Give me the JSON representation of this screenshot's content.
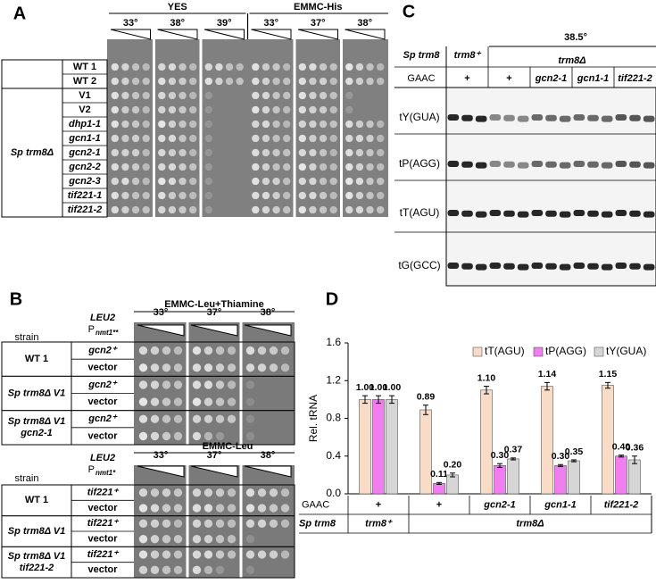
{
  "panel_a": {
    "label": "A",
    "media": [
      "YES",
      "EMMC-His"
    ],
    "temperatures": [
      "33°",
      "38°",
      "39°",
      "33°",
      "37°",
      "38°"
    ],
    "group_label": "Sp trm8Δ",
    "strains": [
      "WT 1",
      "WT 2",
      "V1",
      "V2",
      "dhp1-1",
      "gcn1-1",
      "gcn2-1",
      "gcn2-2",
      "gcn2-3",
      "tif221-1",
      "tif221-2"
    ]
  },
  "panel_b": {
    "label": "B",
    "blocks": [
      {
        "medium": "EMMC-Leu+Thiamine",
        "marker": "LEU2",
        "promoter": "P",
        "promoter_subscript": "nmt1**",
        "strain_header": "strain",
        "temperatures": [
          "33°",
          "37°",
          "38°"
        ],
        "rows": [
          {
            "strain": [
              "WT 1"
            ],
            "plasmids": [
              "gcn2⁺",
              "vector"
            ]
          },
          {
            "strain": [
              "Sp trm8Δ V1"
            ],
            "plasmids": [
              "gcn2⁺",
              "vector"
            ]
          },
          {
            "strain": [
              "Sp trm8Δ V1",
              "gcn2-1"
            ],
            "plasmids": [
              "gcn2⁺",
              "vector"
            ]
          }
        ]
      },
      {
        "medium": "EMMC-Leu",
        "marker": "LEU2",
        "promoter": "P",
        "promoter_subscript": "nmt1*",
        "strain_header": "strain",
        "temperatures": [
          "33°",
          "37°",
          "38°"
        ],
        "rows": [
          {
            "strain": [
              "WT 1"
            ],
            "plasmids": [
              "tif221⁺",
              "vector"
            ]
          },
          {
            "strain": [
              "Sp trm8Δ V1"
            ],
            "plasmids": [
              "tif221⁺",
              "vector"
            ]
          },
          {
            "strain": [
              "Sp trm8Δ V1",
              "tif221-2"
            ],
            "plasmids": [
              "tif221⁺",
              "vector"
            ]
          }
        ]
      }
    ]
  },
  "panel_c": {
    "label": "C",
    "temperature": "38.5°",
    "strain_label": "Sp trm8",
    "genotypes": [
      "trm8⁺",
      "trm8Δ"
    ],
    "gaac_label": "GAAC",
    "gaac": [
      "+",
      "+",
      "gcn2-1",
      "gcn1-1",
      "tif221-2"
    ],
    "trnas": [
      "tY(GUA)",
      "tP(AGG)",
      "tT(AGU)",
      "tG(GCC)"
    ]
  },
  "chart_data": {
    "type": "bar",
    "panel_label": "D",
    "y_label": "Rel. tRNA",
    "categories": [
      "+",
      "+",
      "gcn2-1",
      "gcn1-1",
      "tif221-2"
    ],
    "category_row_label": "GAAC",
    "group_row_label": "Sp trm8",
    "groups": [
      "trm8⁺",
      "trm8Δ"
    ],
    "series": [
      {
        "name": "tT(AGU)",
        "color": "#f9dcc8",
        "values": [
          1.0,
          0.89,
          1.1,
          1.14,
          1.15
        ],
        "value_labels": [
          "1.00",
          "0.89",
          "1.10",
          "1.14",
          "1.15"
        ],
        "errors": [
          0.04,
          0.05,
          0.04,
          0.04,
          0.03
        ]
      },
      {
        "name": "tP(AGG)",
        "color": "#f07ef0",
        "values": [
          1.0,
          0.11,
          0.3,
          0.3,
          0.4
        ],
        "value_labels": [
          "1.00",
          "0.11",
          "0.30",
          "0.30",
          "0.40"
        ],
        "errors": [
          0.04,
          0.01,
          0.02,
          0.01,
          0.01
        ]
      },
      {
        "name": "tY(GUA)",
        "color": "#d6d6d6",
        "values": [
          1.0,
          0.2,
          0.37,
          0.35,
          0.36
        ],
        "value_labels": [
          "1.00",
          "0.20",
          "0.37",
          "0.35",
          "0.36"
        ],
        "errors": [
          0.04,
          0.02,
          0.01,
          0.01,
          0.04
        ]
      }
    ],
    "ylim": [
      0,
      1.6
    ],
    "yticks": [
      {
        "value": 0,
        "label": "0.0"
      },
      0.4,
      0.8,
      1.2,
      1.6
    ],
    "legend": "top-right"
  }
}
